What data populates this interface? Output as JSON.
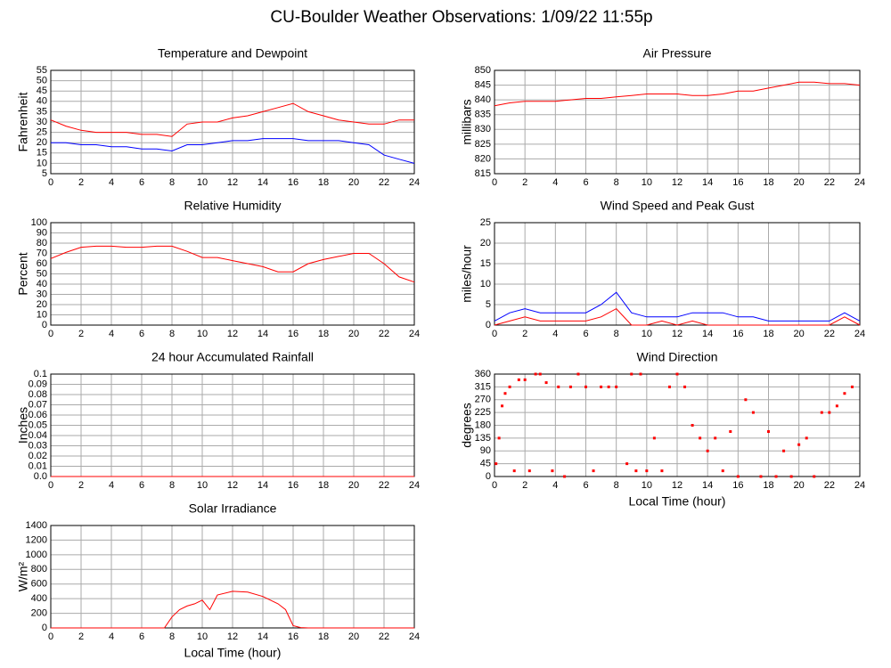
{
  "title": "CU-Boulder Weather Observations: 1/09/22 11:55p",
  "chart_data": [
    {
      "type": "line",
      "title": "Temperature and Dewpoint",
      "y_label": "Fahrenheit",
      "x": [
        0,
        1,
        2,
        3,
        4,
        5,
        6,
        7,
        8,
        9,
        10,
        11,
        12,
        13,
        14,
        15,
        16,
        17,
        18,
        19,
        20,
        21,
        22,
        23,
        24
      ],
      "series": [
        {
          "color": "#ff0000",
          "values": [
            31,
            28,
            26,
            25,
            25,
            25,
            24,
            24,
            23,
            29,
            30,
            30,
            32,
            33,
            35,
            37,
            39,
            35,
            33,
            31,
            30,
            29,
            29,
            31,
            31
          ]
        },
        {
          "color": "#0000ff",
          "values": [
            20,
            20,
            19,
            19,
            18,
            18,
            17,
            17,
            16,
            19,
            19,
            20,
            21,
            21,
            22,
            22,
            22,
            21,
            21,
            21,
            20,
            19,
            14,
            12,
            10
          ]
        }
      ],
      "xlim": [
        0,
        24
      ],
      "xticks": [
        0,
        2,
        4,
        6,
        8,
        10,
        12,
        14,
        16,
        18,
        20,
        22,
        24
      ],
      "ylim": [
        5,
        55
      ],
      "yticks": [
        5,
        10,
        15,
        20,
        25,
        30,
        35,
        40,
        45,
        50,
        55
      ],
      "grid": true
    },
    {
      "type": "line",
      "title": "Air Pressure",
      "y_label": "millibars",
      "x": [
        0,
        1,
        2,
        3,
        4,
        5,
        6,
        7,
        8,
        9,
        10,
        11,
        12,
        13,
        14,
        15,
        16,
        17,
        18,
        19,
        20,
        21,
        22,
        23,
        24
      ],
      "series": [
        {
          "color": "#ff0000",
          "values": [
            838,
            839,
            839.5,
            839.5,
            839.5,
            840,
            840.5,
            840.5,
            841,
            841.5,
            842,
            842,
            842,
            841.5,
            841.5,
            842,
            843,
            843,
            844,
            845,
            846,
            846,
            845.5,
            845.5,
            845
          ]
        }
      ],
      "xlim": [
        0,
        24
      ],
      "xticks": [
        0,
        2,
        4,
        6,
        8,
        10,
        12,
        14,
        16,
        18,
        20,
        22,
        24
      ],
      "ylim": [
        815,
        850
      ],
      "yticks": [
        815,
        820,
        825,
        830,
        835,
        840,
        845,
        850
      ],
      "grid": true
    },
    {
      "type": "line",
      "title": "Relative Humidity",
      "y_label": "Percent",
      "x": [
        0,
        1,
        2,
        3,
        4,
        5,
        6,
        7,
        8,
        9,
        10,
        11,
        12,
        13,
        14,
        15,
        16,
        17,
        18,
        19,
        20,
        21,
        22,
        23,
        24
      ],
      "series": [
        {
          "color": "#ff0000",
          "values": [
            65,
            71,
            76,
            77,
            77,
            76,
            76,
            77,
            77,
            72,
            66,
            66,
            63,
            60,
            57,
            52,
            52,
            60,
            64,
            67,
            70,
            70,
            60,
            47,
            42
          ]
        }
      ],
      "xlim": [
        0,
        24
      ],
      "xticks": [
        0,
        2,
        4,
        6,
        8,
        10,
        12,
        14,
        16,
        18,
        20,
        22,
        24
      ],
      "ylim": [
        0,
        100
      ],
      "yticks": [
        0,
        10,
        20,
        30,
        40,
        50,
        60,
        70,
        80,
        90,
        100
      ],
      "grid": true
    },
    {
      "type": "line",
      "title": "Wind Speed and Peak Gust",
      "y_label": "miles/hour",
      "x": [
        0,
        1,
        2,
        3,
        4,
        5,
        6,
        7,
        8,
        9,
        10,
        11,
        12,
        13,
        14,
        15,
        16,
        17,
        18,
        19,
        20,
        21,
        22,
        23,
        24
      ],
      "series": [
        {
          "color": "#ff0000",
          "values": [
            0,
            1,
            2,
            1,
            1,
            1,
            1,
            2,
            4,
            0,
            0,
            1,
            0,
            1,
            0,
            0,
            0,
            0,
            0,
            0,
            0,
            0,
            0,
            2,
            0
          ]
        },
        {
          "color": "#0000ff",
          "values": [
            1,
            3,
            4,
            3,
            3,
            3,
            3,
            5,
            8,
            3,
            2,
            2,
            2,
            3,
            3,
            3,
            2,
            2,
            1,
            1,
            1,
            1,
            1,
            3,
            1
          ]
        }
      ],
      "xlim": [
        0,
        24
      ],
      "xticks": [
        0,
        2,
        4,
        6,
        8,
        10,
        12,
        14,
        16,
        18,
        20,
        22,
        24
      ],
      "ylim": [
        0,
        25
      ],
      "yticks": [
        0,
        5,
        10,
        15,
        20,
        25
      ],
      "grid": true
    },
    {
      "type": "line",
      "title": "24 hour Accumulated Rainfall",
      "y_label": "Inches",
      "x": [
        0,
        24
      ],
      "series": [
        {
          "color": "#ff0000",
          "values": [
            0,
            0
          ]
        }
      ],
      "xlim": [
        0,
        24
      ],
      "xticks": [
        0,
        2,
        4,
        6,
        8,
        10,
        12,
        14,
        16,
        18,
        20,
        22,
        24
      ],
      "ylim": [
        0,
        0.1
      ],
      "yticks": [
        {
          "value": 0,
          "label": "0.0"
        },
        0.01,
        0.02,
        0.03,
        0.04,
        0.05,
        0.06,
        0.07,
        0.08,
        0.09,
        0.1
      ],
      "grid": true
    },
    {
      "type": "scatter",
      "title": "Wind Direction",
      "y_label": "degrees",
      "x_label": "Local Time (hour)",
      "x": [
        0.1,
        0.3,
        0.5,
        0.7,
        1,
        1.3,
        1.6,
        2,
        2.3,
        2.7,
        3,
        3.4,
        3.8,
        4.2,
        4.6,
        5,
        5.5,
        6,
        6.5,
        7,
        7.5,
        8,
        8.7,
        9,
        9.3,
        9.6,
        10,
        10.5,
        11,
        11.5,
        12,
        12.5,
        13,
        13.5,
        14,
        14.5,
        15,
        15.5,
        16,
        16.5,
        17,
        17.5,
        18,
        18.5,
        19,
        19.5,
        20,
        20.5,
        21,
        21.5,
        22,
        22.5,
        23,
        23.5
      ],
      "series": [
        {
          "color": "#ff0000",
          "values": [
            45,
            135,
            248,
            292,
            315,
            20,
            340,
            340,
            20,
            360,
            360,
            330,
            20,
            315,
            0,
            315,
            360,
            315,
            20,
            315,
            315,
            315,
            45,
            360,
            20,
            360,
            20,
            135,
            20,
            315,
            360,
            315,
            180,
            135,
            90,
            135,
            20,
            158,
            0,
            270,
            225,
            0,
            158,
            0,
            90,
            0,
            112,
            135,
            0,
            225,
            225,
            248,
            292,
            315
          ]
        }
      ],
      "xlim": [
        0,
        24
      ],
      "xticks": [
        0,
        2,
        4,
        6,
        8,
        10,
        12,
        14,
        16,
        18,
        20,
        22,
        24
      ],
      "ylim": [
        0,
        360
      ],
      "yticks": [
        0,
        45,
        90,
        135,
        180,
        225,
        270,
        315,
        360
      ],
      "grid": true
    },
    {
      "type": "line",
      "title": "Solar Irradiance",
      "y_label": "W/m²",
      "x_label": "Local Time (hour)",
      "x": [
        0,
        7.5,
        8,
        8.5,
        9,
        9.5,
        10,
        10.5,
        11,
        12,
        13,
        14,
        15,
        15.5,
        16,
        16.5,
        17,
        24
      ],
      "series": [
        {
          "color": "#ff0000",
          "values": [
            0,
            0,
            150,
            250,
            300,
            330,
            380,
            250,
            450,
            500,
            490,
            430,
            330,
            250,
            30,
            5,
            0,
            0
          ]
        }
      ],
      "xlim": [
        0,
        24
      ],
      "xticks": [
        0,
        2,
        4,
        6,
        8,
        10,
        12,
        14,
        16,
        18,
        20,
        22,
        24
      ],
      "ylim": [
        0,
        1400
      ],
      "yticks": [
        0,
        200,
        400,
        600,
        800,
        1000,
        1200,
        1400
      ],
      "grid": true
    }
  ]
}
